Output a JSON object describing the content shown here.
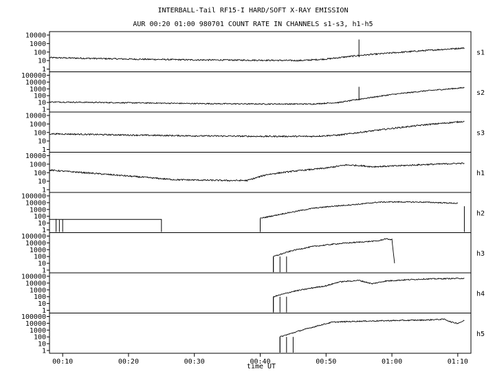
{
  "chart_data": {
    "type": "line",
    "title": "INTERBALL-Tail RF15-I HARD/SOFT X-RAY EMISSION",
    "subtitle": "AUR 00:20 01:00 980701  COUNT RATE IN CHANNELS s1-s3, h1-h5",
    "xlabel": "time UT",
    "x_ticks": [
      "00:10",
      "00:20",
      "00:30",
      "00:40",
      "00:50",
      "01:00",
      "01:10"
    ],
    "x_range": [
      "00:08",
      "01:12"
    ],
    "yscale": "log",
    "grid": false,
    "panels": [
      {
        "name": "s1",
        "y_ticks": [
          "10000",
          "1000",
          "100",
          "10",
          "1"
        ],
        "ylim": [
          1,
          10000
        ],
        "series": [
          [
            "00:08",
            22
          ],
          [
            "00:20",
            15
          ],
          [
            "00:30",
            12
          ],
          [
            "00:40",
            11
          ],
          [
            "00:46",
            10
          ],
          [
            "00:50",
            15
          ],
          [
            "00:55",
            40
          ],
          [
            "01:00",
            80
          ],
          [
            "01:05",
            150
          ],
          [
            "01:11",
            300
          ]
        ],
        "spikes": [
          [
            "00:55",
            3000
          ]
        ]
      },
      {
        "name": "s2",
        "y_ticks": [
          "100000",
          "10000",
          "1000",
          "100",
          "10",
          "1"
        ],
        "ylim": [
          1,
          100000
        ],
        "series": [
          [
            "00:08",
            12
          ],
          [
            "00:20",
            9
          ],
          [
            "00:30",
            7
          ],
          [
            "00:40",
            6
          ],
          [
            "00:48",
            6
          ],
          [
            "00:52",
            10
          ],
          [
            "00:55",
            30
          ],
          [
            "01:00",
            150
          ],
          [
            "01:05",
            500
          ],
          [
            "01:11",
            1500
          ]
        ],
        "spikes": [
          [
            "00:55",
            2000
          ]
        ]
      },
      {
        "name": "s3",
        "y_ticks": [
          "10000",
          "1000",
          "100",
          "10",
          "1"
        ],
        "ylim": [
          1,
          10000
        ],
        "series": [
          [
            "00:08",
            70
          ],
          [
            "00:20",
            50
          ],
          [
            "00:30",
            40
          ],
          [
            "00:40",
            35
          ],
          [
            "00:48",
            35
          ],
          [
            "00:52",
            50
          ],
          [
            "00:55",
            100
          ],
          [
            "01:00",
            300
          ],
          [
            "01:05",
            800
          ],
          [
            "01:11",
            2000
          ]
        ],
        "spikes": []
      },
      {
        "name": "h1",
        "y_ticks": [
          "10000",
          "1000",
          "100",
          "10",
          "1"
        ],
        "ylim": [
          1,
          10000
        ],
        "series": [
          [
            "00:08",
            200
          ],
          [
            "00:15",
            80
          ],
          [
            "00:20",
            40
          ],
          [
            "00:27",
            15
          ],
          [
            "00:35",
            12
          ],
          [
            "00:38",
            12
          ],
          [
            "00:41",
            60
          ],
          [
            "00:45",
            150
          ],
          [
            "00:50",
            350
          ],
          [
            "00:53",
            800
          ],
          [
            "00:55",
            700
          ],
          [
            "00:57",
            500
          ],
          [
            "01:00",
            600
          ],
          [
            "01:05",
            900
          ],
          [
            "01:11",
            1300
          ]
        ],
        "spikes": []
      },
      {
        "name": "h2",
        "y_ticks": [
          "100000",
          "10000",
          "1000",
          "100",
          "10",
          "1"
        ],
        "ylim": [
          1,
          100000
        ],
        "series": [
          [
            "00:40",
            50
          ],
          [
            "00:44",
            300
          ],
          [
            "00:48",
            1500
          ],
          [
            "00:51",
            3000
          ],
          [
            "00:55",
            6000
          ],
          [
            "00:58",
            12000
          ],
          [
            "01:00",
            13000
          ],
          [
            "01:05",
            12000
          ],
          [
            "01:10",
            8000
          ]
        ],
        "spikes": [
          [
            "00:09",
            40
          ],
          [
            "00:09.5",
            30
          ],
          [
            "00:10",
            35
          ],
          [
            "01:11",
            3000
          ]
        ],
        "flat_level": 35,
        "flat_range": [
          "00:08",
          "00:25"
        ]
      },
      {
        "name": "h3",
        "y_ticks": [
          "100000",
          "10000",
          "1000",
          "100",
          "10",
          "1"
        ],
        "ylim": [
          1,
          100000
        ],
        "series": [
          [
            "00:42",
            100
          ],
          [
            "00:45",
            800
          ],
          [
            "00:48",
            3000
          ],
          [
            "00:52",
            8000
          ],
          [
            "00:56",
            15000
          ],
          [
            "00:58",
            20000
          ],
          [
            "00:59",
            40000
          ],
          [
            "01:00",
            30000
          ],
          [
            "01:00.4",
            10
          ]
        ],
        "spikes": [
          [
            "00:42",
            1
          ],
          [
            "00:43",
            1
          ],
          [
            "00:44",
            1
          ]
        ]
      },
      {
        "name": "h4",
        "y_ticks": [
          "100000",
          "10000",
          "1000",
          "100",
          "10",
          "1"
        ],
        "ylim": [
          1,
          100000
        ],
        "series": [
          [
            "00:42",
            100
          ],
          [
            "00:45",
            600
          ],
          [
            "00:48",
            2000
          ],
          [
            "00:50",
            4000
          ],
          [
            "00:52",
            15000
          ],
          [
            "00:55",
            25000
          ],
          [
            "00:57",
            8000
          ],
          [
            "00:59",
            20000
          ],
          [
            "01:02",
            30000
          ],
          [
            "01:05",
            40000
          ],
          [
            "01:11",
            50000
          ]
        ],
        "spikes": [
          [
            "00:42",
            1
          ],
          [
            "00:43",
            1
          ],
          [
            "00:44",
            1
          ]
        ]
      },
      {
        "name": "h5",
        "y_ticks": [
          "100000",
          "10000",
          "1000",
          "100",
          "10",
          "1"
        ],
        "ylim": [
          1,
          100000
        ],
        "series": [
          [
            "00:43",
            100
          ],
          [
            "00:46",
            800
          ],
          [
            "00:49",
            5000
          ],
          [
            "00:51",
            15000
          ],
          [
            "00:55",
            20000
          ],
          [
            "01:00",
            25000
          ],
          [
            "01:05",
            30000
          ],
          [
            "01:08",
            40000
          ],
          [
            "01:09",
            15000
          ],
          [
            "01:10",
            10000
          ],
          [
            "01:11",
            25000
          ]
        ],
        "spikes": [
          [
            "00:43",
            1
          ],
          [
            "00:44",
            1
          ],
          [
            "00:45",
            1
          ]
        ]
      }
    ]
  }
}
